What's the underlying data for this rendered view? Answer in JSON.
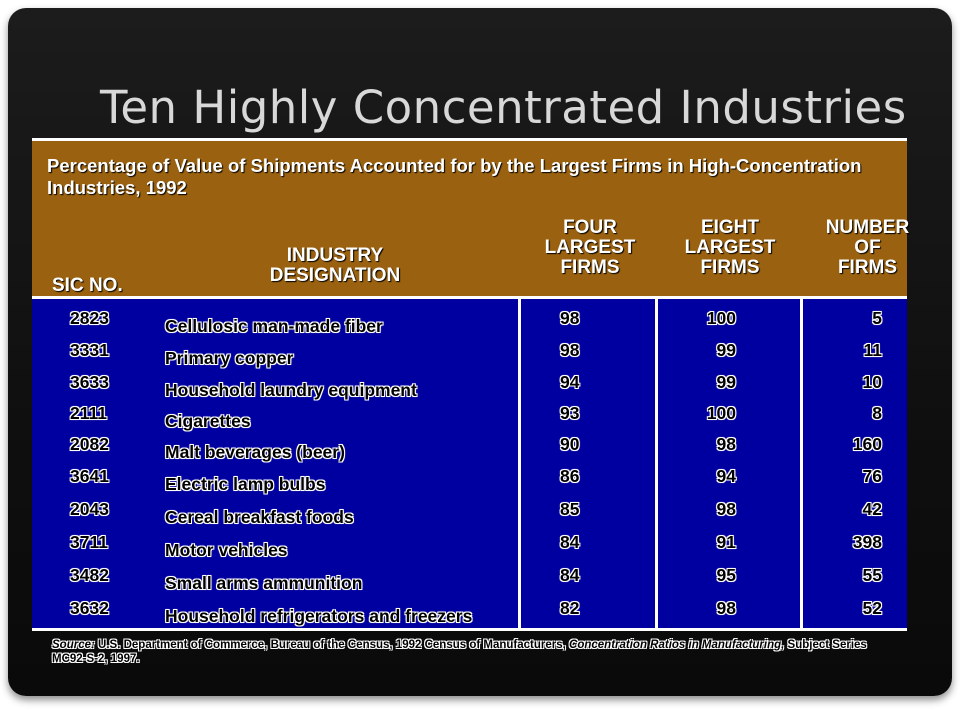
{
  "title": "Ten Highly Concentrated Industries",
  "banner": "Percentage of Value of Shipments Accounted for by the Largest Firms in High-Concentration Industries, 1992",
  "headers": {
    "sic": "SIC NO.",
    "industry": [
      "INDUSTRY",
      "DESIGNATION"
    ],
    "four": [
      "FOUR",
      "LARGEST",
      "FIRMS"
    ],
    "eight": [
      "EIGHT",
      "LARGEST",
      "FIRMS"
    ],
    "number": [
      "NUMBER",
      "OF",
      "FIRMS"
    ]
  },
  "rows": [
    {
      "sic": "2823",
      "industry": "Cellulosic man-made fiber",
      "four": "98",
      "eight": "100",
      "number": "5"
    },
    {
      "sic": "3331",
      "industry": "Primary copper",
      "four": "98",
      "eight": "99",
      "number": "11"
    },
    {
      "sic": "3633",
      "industry": "Household laundry equipment",
      "four": "94",
      "eight": "99",
      "number": "10"
    },
    {
      "sic": "2111",
      "industry": "Cigarettes",
      "four": "93",
      "eight": "100",
      "number": "8"
    },
    {
      "sic": "2082",
      "industry": "Malt beverages (beer)",
      "four": "90",
      "eight": "98",
      "number": "160"
    },
    {
      "sic": "3641",
      "industry": "Electric lamp bulbs",
      "four": "86",
      "eight": "94",
      "number": "76"
    },
    {
      "sic": "2043",
      "industry": "Cereal breakfast foods",
      "four": "85",
      "eight": "98",
      "number": "42"
    },
    {
      "sic": "3711",
      "industry": "Motor vehicles",
      "four": "84",
      "eight": "91",
      "number": "398"
    },
    {
      "sic": "3482",
      "industry": "Small arms ammunition",
      "four": "84",
      "eight": "95",
      "number": "55"
    },
    {
      "sic": "3632",
      "industry": "Household refrigerators and freezers",
      "four": "82",
      "eight": "98",
      "number": "52"
    }
  ],
  "source": {
    "label": "Source:",
    "text1": "U.S. Department of Commerce, Bureau of the Census, 1992 Census of Manufacturers,",
    "italic": "Concentration Ratios in Manufacturing,",
    "text2": "Subject Series MC92-S-2,  1997."
  }
}
